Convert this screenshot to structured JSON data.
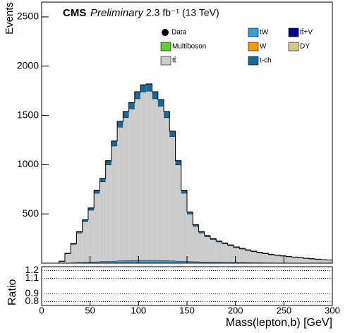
{
  "chart_data": {
    "type": "stacked_histogram",
    "cms": "CMS",
    "subtitle": "Preliminary",
    "lumi": "2.3 fb⁻¹ (13 TeV)",
    "ylabel": "Events",
    "xlabel": "Mass(lepton,b) [GeV]",
    "ratio_ylabel": "Ratio",
    "data_label": "Data",
    "xlim": [
      0,
      300
    ],
    "xticks": [
      0,
      50,
      100,
      150,
      200,
      250,
      300
    ],
    "ylim": [
      0,
      2650
    ],
    "yticks": [
      500,
      1000,
      1500,
      2000,
      2500
    ],
    "ratio_ylim": [
      0.75,
      1.25
    ],
    "ratio_yticks": [
      0.8,
      0.9,
      1.1,
      1.2
    ],
    "bins": [
      0,
      6,
      12,
      18,
      24,
      30,
      36,
      42,
      48,
      54,
      60,
      66,
      72,
      78,
      84,
      90,
      96,
      102,
      108,
      114,
      120,
      126,
      132,
      138,
      144,
      150,
      156,
      162,
      168,
      174,
      180,
      186,
      192,
      198,
      204,
      210,
      216,
      222,
      228,
      234,
      240,
      246,
      252,
      258,
      264,
      270,
      276,
      282,
      288,
      294,
      300
    ],
    "series": [
      {
        "name": "tt̄+V",
        "color": "#00008b",
        "values": [
          0,
          0,
          0,
          0,
          0,
          0,
          0,
          0,
          0,
          0,
          0,
          0,
          0,
          0,
          0,
          0,
          0,
          0,
          0,
          0,
          0,
          0,
          0,
          0,
          0,
          0,
          0,
          0,
          0,
          0,
          0,
          0,
          0,
          0,
          0,
          0,
          0,
          0,
          0,
          0,
          0,
          0,
          0,
          0,
          0,
          0,
          0,
          0,
          0,
          0
        ]
      },
      {
        "name": "Multiboson",
        "color": "#66cc33",
        "values": [
          0,
          0,
          0,
          0,
          0,
          0,
          0,
          0,
          0,
          0,
          0,
          0,
          0,
          0,
          0,
          0,
          0,
          0,
          0,
          0,
          0,
          0,
          0,
          0,
          0,
          0,
          0,
          0,
          0,
          0,
          0,
          0,
          0,
          0,
          0,
          0,
          0,
          0,
          0,
          0,
          0,
          0,
          0,
          0,
          0,
          0,
          0,
          0,
          0,
          0
        ]
      },
      {
        "name": "W",
        "color": "#ff9900",
        "values": [
          0,
          0,
          0,
          0,
          0,
          0,
          0,
          0,
          0,
          0,
          0,
          0,
          0,
          0,
          0,
          0,
          0,
          0,
          0,
          0,
          0,
          0,
          0,
          0,
          0,
          0,
          0,
          0,
          0,
          0,
          0,
          0,
          0,
          0,
          0,
          0,
          0,
          0,
          0,
          0,
          0,
          0,
          0,
          0,
          0,
          0,
          0,
          0,
          0,
          0
        ]
      },
      {
        "name": "DY",
        "color": "#d4cc88",
        "values": [
          0,
          0,
          0,
          0,
          0,
          0,
          0,
          0,
          0,
          0,
          0,
          0,
          0,
          0,
          0,
          0,
          0,
          0,
          0,
          0,
          0,
          0,
          0,
          0,
          0,
          0,
          0,
          0,
          0,
          0,
          0,
          0,
          0,
          0,
          0,
          0,
          0,
          0,
          0,
          0,
          0,
          0,
          0,
          0,
          0,
          0,
          0,
          0,
          0,
          0
        ]
      },
      {
        "name": "tW",
        "color": "#3d9bd6",
        "values": [
          0,
          0,
          0,
          1,
          3,
          5,
          8,
          10,
          12,
          15,
          18,
          20,
          22,
          25,
          27,
          28,
          30,
          30,
          30,
          30,
          28,
          27,
          25,
          22,
          20,
          18,
          16,
          14,
          13,
          12,
          11,
          10,
          9,
          8,
          7,
          6,
          5,
          5,
          4,
          4,
          3,
          3,
          3,
          2,
          2,
          2,
          2,
          1,
          1,
          1
        ]
      },
      {
        "name": "tt̄",
        "color": "#cccccc",
        "values": [
          0,
          0,
          0,
          18,
          93,
          187,
          299,
          412,
          526,
          695,
          808,
          978,
          1168,
          1357,
          1451,
          1537,
          1640,
          1708,
          1717,
          1640,
          1566,
          1451,
          1261,
          976,
          690,
          481,
          358,
          293,
          256,
          228,
          205,
          187,
          169,
          150,
          137,
          124,
          112,
          101,
          92,
          82,
          76,
          69,
          62,
          58,
          52,
          46,
          41,
          37,
          34,
          30
        ]
      },
      {
        "name": "t-ch",
        "color": "#19689a",
        "values": [
          0,
          0,
          0,
          1,
          4,
          8,
          13,
          18,
          22,
          30,
          34,
          42,
          50,
          58,
          62,
          65,
          70,
          72,
          73,
          70,
          66,
          62,
          54,
          42,
          30,
          21,
          16,
          13,
          11,
          10,
          9,
          8,
          7,
          7,
          6,
          5,
          5,
          4,
          4,
          4,
          3,
          3,
          3,
          2,
          2,
          2,
          2,
          2,
          1,
          1
        ]
      }
    ]
  }
}
